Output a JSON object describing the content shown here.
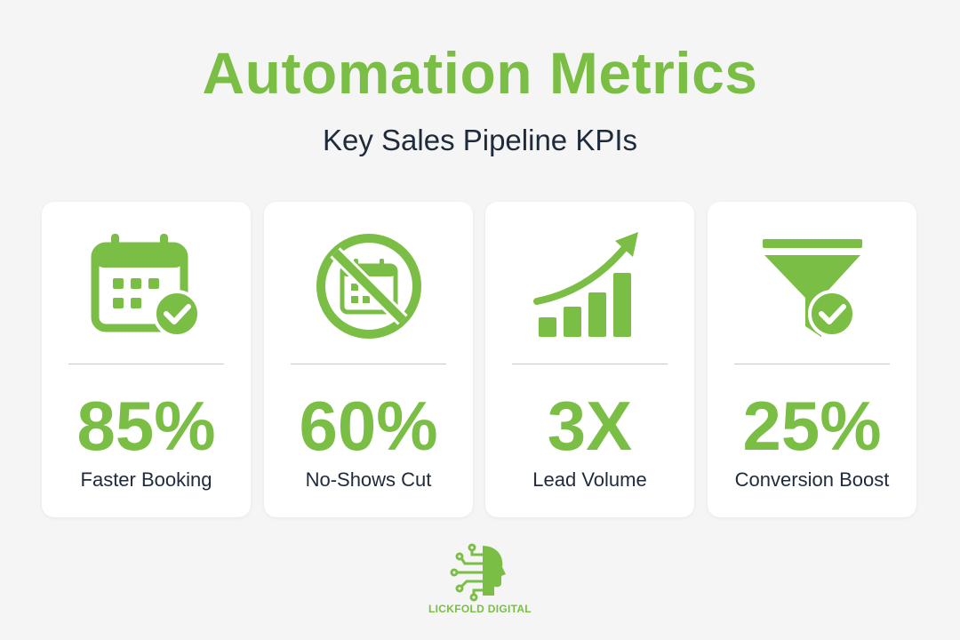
{
  "header": {
    "title": "Automation Metrics",
    "subtitle": "Key Sales Pipeline KPIs"
  },
  "cards": [
    {
      "icon": "calendar-check-icon",
      "value": "85%",
      "label": "Faster Booking"
    },
    {
      "icon": "no-calendar-icon",
      "value": "60%",
      "label": "No-Shows Cut"
    },
    {
      "icon": "growth-chart-icon",
      "value": "3X",
      "label": "Lead Volume"
    },
    {
      "icon": "funnel-check-icon",
      "value": "25%",
      "label": "Conversion Boost"
    }
  ],
  "logo": {
    "icon": "ai-head-circuit-icon",
    "text": "LICKFOLD DIGITAL"
  },
  "colors": {
    "accent": "#7bbe45",
    "text": "#1f2a3a",
    "background": "#f4f5f4",
    "card": "#ffffff"
  }
}
